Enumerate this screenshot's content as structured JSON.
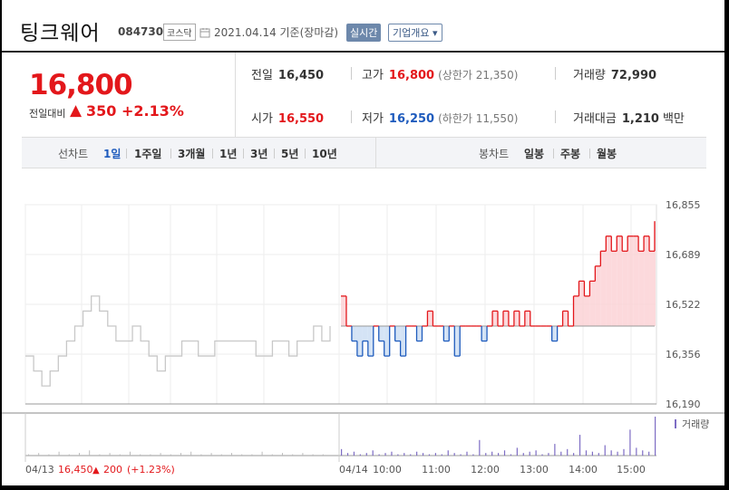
{
  "header": {
    "name": "팅크웨어",
    "code": "084730",
    "market": "코스닥",
    "date": "2021.04.14 기준(장마감)",
    "realtime_label": "실시간",
    "company_label": "기업개요 ▾"
  },
  "price": {
    "current": "16,800",
    "change_label": "전일대비",
    "change_arrow": "▲",
    "change_value": "350",
    "change_pct": "+2.13%"
  },
  "stats": {
    "prev_label": "전일",
    "prev": "16,450",
    "high_label": "고가",
    "high": "16,800",
    "upper_limit": "(상한가 21,350)",
    "volume_label": "거래량",
    "volume": "72,990",
    "open_label": "시가",
    "open": "16,550",
    "low_label": "저가",
    "low": "16,250",
    "lower_limit": "(하한가 11,550)",
    "amount_label": "거래대금",
    "amount": "1,210",
    "amount_unit": "백만"
  },
  "period_bar": {
    "line_chart_label": "선차트",
    "line_periods": [
      "1일",
      "1주일",
      "3개월",
      "1년",
      "3년",
      "5년",
      "10년"
    ],
    "candle_chart_label": "봉차트",
    "candle_periods": [
      "일봉",
      "주봉",
      "월봉"
    ]
  },
  "colors": {
    "up": "#e3171b",
    "down": "#1e5bbd",
    "prev_day_line": "#c8c8c8",
    "volume_bar": "#7d6cc4"
  },
  "chart_data": {
    "type": "line",
    "y_ticks": [
      "16,855",
      "16,689",
      "16,522",
      "16,356",
      "16,190"
    ],
    "ylim": [
      16190,
      16855
    ],
    "baseline": 16450,
    "x_ticks": [
      "04/14",
      "10:00",
      "11:00",
      "12:00",
      "13:00",
      "14:00",
      "15:00"
    ],
    "prev_day_label": "04/13",
    "prev_day_price": "16,450",
    "prev_day_change_arrow": "▲",
    "prev_day_change": "200",
    "prev_day_change_pct": "(+1.23%)",
    "volume_legend": "거래량",
    "series": [
      {
        "values": [
          16350,
          16300,
          16250,
          16300,
          16350,
          16400,
          16450,
          16500,
          16550,
          16500,
          16450,
          16400,
          16400,
          16450,
          16400,
          16350,
          16300,
          16350,
          16350,
          16400,
          16400,
          16350,
          16350,
          16400,
          16400,
          16400,
          16400,
          16400,
          16350,
          16350,
          16400,
          16400,
          16350,
          16400,
          16400,
          16450,
          16400,
          16450
        ]
      },
      {
        "values": [
          16550,
          16450,
          16400,
          16350,
          16400,
          16350,
          16450,
          16400,
          16350,
          16450,
          16400,
          16350,
          16450,
          16450,
          16400,
          16450,
          16500,
          16450,
          16450,
          16400,
          16450,
          16350,
          16450,
          16450,
          16450,
          16450,
          16400,
          16450,
          16500,
          16450,
          16500,
          16450,
          16500,
          16450,
          16500,
          16450,
          16450,
          16450,
          16450,
          16400,
          16450,
          16500,
          16450,
          16550,
          16600,
          16550,
          16600,
          16650,
          16700,
          16750,
          16700,
          16750,
          16700,
          16750,
          16750,
          16700,
          16750,
          16700,
          16800
        ]
      }
    ],
    "volume": {
      "prev": [
        1,
        2,
        1,
        3,
        1,
        2,
        4,
        1,
        2,
        1,
        3,
        1,
        1,
        2,
        1,
        2,
        3,
        1,
        2,
        1,
        2,
        1,
        1,
        3,
        1,
        2,
        1,
        2,
        1,
        1
      ],
      "today": [
        5,
        2,
        3,
        1,
        2,
        4,
        1,
        2,
        3,
        1,
        2,
        1,
        3,
        2,
        1,
        2,
        1,
        4,
        2,
        1,
        3,
        1,
        12,
        2,
        3,
        2,
        4,
        1,
        6,
        2,
        3,
        4,
        1,
        2,
        9,
        3,
        5,
        2,
        16,
        4,
        3,
        2,
        8,
        4,
        3,
        5,
        20,
        6,
        4,
        3,
        30
      ]
    }
  }
}
